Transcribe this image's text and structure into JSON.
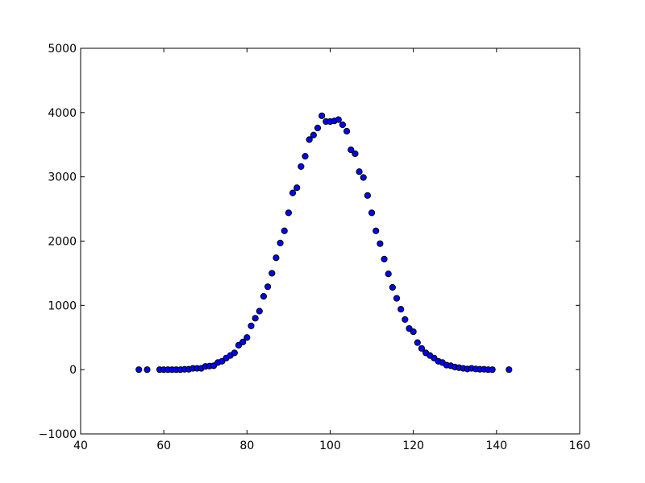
{
  "chart_data": {
    "type": "scatter",
    "title": "",
    "xlabel": "",
    "ylabel": "",
    "xlim": [
      40,
      160
    ],
    "ylim": [
      -1000,
      5000
    ],
    "xticks": [
      40,
      60,
      80,
      100,
      120,
      140,
      160
    ],
    "yticks": [
      -1000,
      0,
      1000,
      2000,
      3000,
      4000,
      5000
    ],
    "xtick_labels": [
      "40",
      "60",
      "80",
      "100",
      "120",
      "140",
      "160"
    ],
    "ytick_labels": [
      "−1000",
      "0",
      "1000",
      "2000",
      "3000",
      "4000",
      "5000"
    ],
    "grid": false,
    "marker_color": "#0000ff",
    "marker_edge_color": "#000000",
    "x": [
      54,
      56,
      59,
      60,
      61,
      62,
      63,
      64,
      65,
      66,
      67,
      68,
      69,
      70,
      71,
      72,
      73,
      74,
      75,
      76,
      77,
      78,
      79,
      80,
      81,
      82,
      83,
      84,
      85,
      86,
      87,
      88,
      89,
      90,
      91,
      92,
      93,
      94,
      95,
      96,
      97,
      98,
      99,
      100,
      101,
      102,
      103,
      104,
      105,
      106,
      107,
      108,
      109,
      110,
      111,
      112,
      113,
      114,
      115,
      116,
      117,
      118,
      119,
      120,
      121,
      122,
      123,
      124,
      125,
      126,
      127,
      128,
      129,
      130,
      131,
      132,
      133,
      134,
      135,
      136,
      137,
      138,
      139,
      143
    ],
    "y": [
      0,
      0,
      0,
      0,
      0,
      0,
      0,
      0,
      5,
      5,
      20,
      20,
      20,
      50,
      55,
      60,
      110,
      130,
      180,
      220,
      260,
      380,
      430,
      500,
      680,
      800,
      910,
      1140,
      1290,
      1500,
      1740,
      1970,
      2160,
      2440,
      2750,
      2830,
      3160,
      3320,
      3580,
      3650,
      3760,
      3950,
      3860,
      3860,
      3870,
      3890,
      3810,
      3710,
      3420,
      3360,
      3080,
      2990,
      2710,
      2440,
      2160,
      1960,
      1720,
      1490,
      1280,
      1110,
      940,
      780,
      640,
      590,
      420,
      330,
      260,
      220,
      180,
      130,
      110,
      70,
      60,
      40,
      30,
      20,
      10,
      20,
      10,
      5,
      5,
      0,
      0,
      0
    ]
  }
}
